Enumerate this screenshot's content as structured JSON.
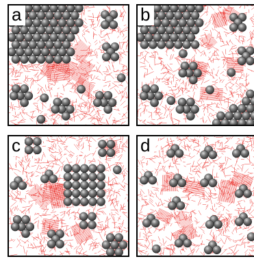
{
  "figure": {
    "panels": [
      {
        "label": "a",
        "scene": "large-hex-cluster-top-left"
      },
      {
        "label": "b",
        "scene": "two-hex-clusters-top-and-bottom-right"
      },
      {
        "label": "c",
        "scene": "small-clusters-with-central-square"
      },
      {
        "label": "d",
        "scene": "dispersed-small-clusters"
      }
    ]
  },
  "colors": {
    "fiber": "#e8201a",
    "particle_dark": "#2e2e2e",
    "particle_light": "#d8d8d8",
    "frame": "#000000"
  }
}
